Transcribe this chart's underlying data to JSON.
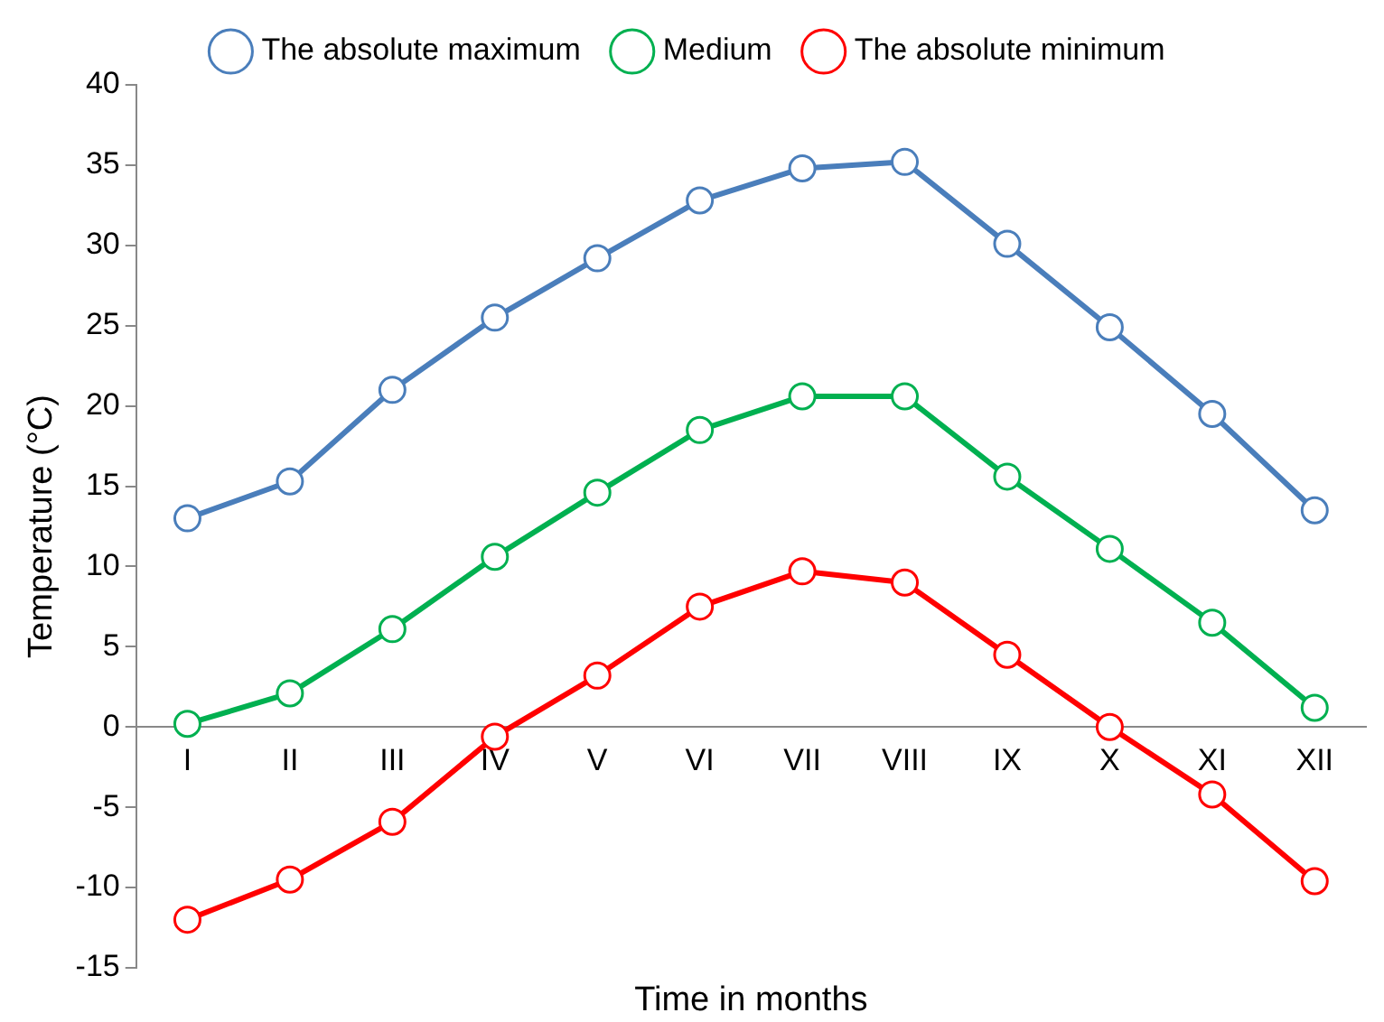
{
  "chart_data": {
    "type": "line",
    "xlabel": "Time in months",
    "ylabel": "Temperature (°C)",
    "categories": [
      "I",
      "II",
      "III",
      "IV",
      "V",
      "VI",
      "VII",
      "VIII",
      "IX",
      "X",
      "XI",
      "XII"
    ],
    "series": [
      {
        "name": "The absolute maximum",
        "color": "#4a7ebb",
        "values": [
          13,
          15.3,
          21,
          25.5,
          29.2,
          32.8,
          34.8,
          35.2,
          30.1,
          24.9,
          19.5,
          13.5
        ]
      },
      {
        "name": "Medium",
        "color": "#00b050",
        "values": [
          0.2,
          2.1,
          6.1,
          10.6,
          14.6,
          18.5,
          20.6,
          20.6,
          15.6,
          11.1,
          6.5,
          1.2
        ]
      },
      {
        "name": "The absolute minimum",
        "color": "#ff0000",
        "values": [
          -12,
          -9.5,
          -5.9,
          -0.6,
          3.2,
          7.5,
          9.7,
          9.0,
          4.5,
          0,
          -4.2,
          -9.6
        ]
      }
    ],
    "ylim": [
      -15,
      40
    ],
    "yticks": [
      -15,
      -10,
      -5,
      0,
      5,
      10,
      15,
      20,
      25,
      30,
      35,
      40
    ],
    "grid": false,
    "legend": "top",
    "marker": "circle",
    "line_style": "solid"
  }
}
